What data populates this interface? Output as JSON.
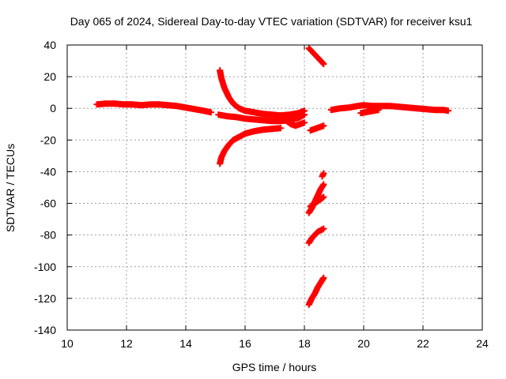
{
  "chart_data": {
    "type": "scatter",
    "title": "Day 065 of 2024, Sidereal Day-to-day VTEC variation (SDTVAR) for receiver ksu1",
    "xlabel": "GPS time / hours",
    "ylabel": "SDTVAR / TECUs",
    "xlim": [
      10,
      24
    ],
    "ylim": [
      -140,
      40
    ],
    "xticks": [
      "10",
      "12",
      "14",
      "16",
      "18",
      "20",
      "22",
      "24"
    ],
    "yticks": [
      "40",
      "20",
      "0",
      "-20",
      "-40",
      "-60",
      "-80",
      "-100",
      "-120",
      "-140"
    ],
    "grid": true,
    "marker": "+",
    "color": "#ff0000",
    "series": [
      {
        "points": [
          [
            11.0,
            2.5
          ],
          [
            11.3,
            3
          ],
          [
            11.6,
            3
          ],
          [
            11.9,
            2.5
          ],
          [
            12.2,
            2.5
          ],
          [
            12.5,
            2
          ],
          [
            12.8,
            2.5
          ],
          [
            13.1,
            2.5
          ],
          [
            13.4,
            2
          ],
          [
            13.7,
            1.5
          ],
          [
            14.0,
            0.5
          ],
          [
            14.3,
            -0.5
          ],
          [
            14.6,
            -1.5
          ],
          [
            14.85,
            -2.5
          ]
        ]
      },
      {
        "points": [
          [
            15.15,
            24
          ],
          [
            15.2,
            19
          ],
          [
            15.3,
            13
          ],
          [
            15.45,
            7
          ],
          [
            15.6,
            3
          ],
          [
            15.8,
            0
          ],
          [
            16.0,
            -1.5
          ],
          [
            16.3,
            -2.5
          ],
          [
            16.6,
            -3.5
          ],
          [
            16.9,
            -4
          ],
          [
            17.2,
            -4.5
          ],
          [
            17.5,
            -4
          ],
          [
            17.8,
            -3
          ],
          [
            18.0,
            -1.5
          ]
        ]
      },
      {
        "points": [
          [
            15.1,
            -4
          ],
          [
            15.4,
            -5
          ],
          [
            15.7,
            -5.5
          ],
          [
            16.0,
            -6.5
          ],
          [
            16.3,
            -7
          ],
          [
            16.6,
            -7.5
          ],
          [
            16.9,
            -8
          ],
          [
            17.2,
            -8
          ],
          [
            17.5,
            -7.5
          ],
          [
            17.8,
            -6
          ],
          [
            18.0,
            -4
          ]
        ]
      },
      {
        "points": [
          [
            15.15,
            -35
          ],
          [
            15.2,
            -31
          ],
          [
            15.3,
            -27
          ],
          [
            15.45,
            -23
          ],
          [
            15.6,
            -20
          ],
          [
            15.8,
            -18
          ],
          [
            16.0,
            -16
          ],
          [
            16.3,
            -14.5
          ],
          [
            16.6,
            -13.5
          ],
          [
            16.9,
            -13
          ],
          [
            17.2,
            -12.5
          ]
        ]
      },
      {
        "points": [
          [
            17.4,
            -8
          ],
          [
            17.55,
            -10
          ],
          [
            17.7,
            -11
          ],
          [
            17.85,
            -10
          ],
          [
            18.0,
            -9
          ]
        ]
      },
      {
        "points": [
          [
            18.15,
            38
          ],
          [
            18.25,
            36
          ],
          [
            18.35,
            34
          ],
          [
            18.45,
            32
          ],
          [
            18.55,
            30
          ],
          [
            18.65,
            28
          ]
        ]
      },
      {
        "points": [
          [
            18.2,
            -14
          ],
          [
            18.35,
            -13
          ],
          [
            18.5,
            -12
          ],
          [
            18.65,
            -11
          ]
        ]
      },
      {
        "points": [
          [
            18.6,
            -43
          ],
          [
            18.65,
            -41
          ]
        ]
      },
      {
        "points": [
          [
            18.15,
            -66
          ],
          [
            18.25,
            -63
          ],
          [
            18.35,
            -59
          ],
          [
            18.45,
            -55
          ],
          [
            18.55,
            -51
          ],
          [
            18.65,
            -48
          ]
        ]
      },
      {
        "points": [
          [
            18.2,
            -62
          ],
          [
            18.35,
            -60
          ],
          [
            18.5,
            -58
          ],
          [
            18.65,
            -56
          ]
        ]
      },
      {
        "points": [
          [
            18.15,
            -85
          ],
          [
            18.25,
            -82
          ],
          [
            18.35,
            -80
          ],
          [
            18.45,
            -78
          ],
          [
            18.55,
            -77
          ],
          [
            18.65,
            -76
          ]
        ]
      },
      {
        "points": [
          [
            18.15,
            -124
          ],
          [
            18.25,
            -120
          ],
          [
            18.35,
            -117
          ],
          [
            18.45,
            -113
          ],
          [
            18.55,
            -110
          ],
          [
            18.65,
            -107
          ]
        ]
      },
      {
        "points": [
          [
            18.9,
            -1
          ],
          [
            19.2,
            0
          ],
          [
            19.5,
            0.5
          ],
          [
            19.8,
            1.5
          ],
          [
            20.0,
            2
          ],
          [
            20.3,
            1.5
          ],
          [
            20.6,
            1.5
          ],
          [
            20.9,
            1.5
          ],
          [
            21.2,
            1
          ],
          [
            21.5,
            0.5
          ],
          [
            21.8,
            0
          ],
          [
            22.1,
            -0.5
          ],
          [
            22.4,
            -1
          ],
          [
            22.7,
            -1
          ],
          [
            22.85,
            -1.5
          ]
        ]
      },
      {
        "points": [
          [
            19.9,
            -3
          ],
          [
            20.2,
            -2
          ],
          [
            20.5,
            -1
          ]
        ]
      }
    ]
  }
}
